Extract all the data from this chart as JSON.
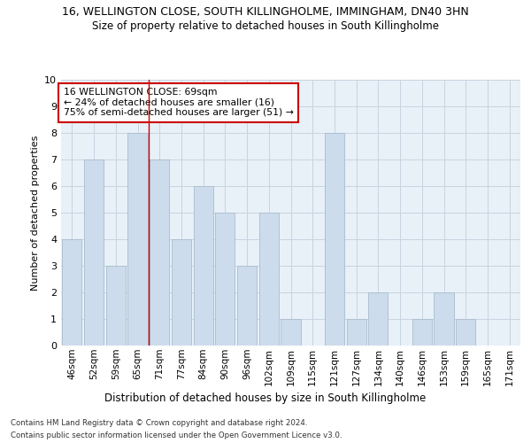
{
  "title": "16, WELLINGTON CLOSE, SOUTH KILLINGHOLME, IMMINGHAM, DN40 3HN",
  "subtitle": "Size of property relative to detached houses in South Killingholme",
  "xlabel": "Distribution of detached houses by size in South Killingholme",
  "ylabel": "Number of detached properties",
  "categories": [
    "46sqm",
    "52sqm",
    "59sqm",
    "65sqm",
    "71sqm",
    "77sqm",
    "84sqm",
    "90sqm",
    "96sqm",
    "102sqm",
    "109sqm",
    "115sqm",
    "121sqm",
    "127sqm",
    "134sqm",
    "140sqm",
    "146sqm",
    "153sqm",
    "159sqm",
    "165sqm",
    "171sqm"
  ],
  "values": [
    4,
    7,
    3,
    8,
    7,
    4,
    6,
    5,
    3,
    5,
    1,
    0,
    8,
    1,
    2,
    0,
    1,
    2,
    1,
    0,
    0
  ],
  "bar_color": "#ccdcec",
  "bar_edge_color": "#aabccc",
  "ylim": [
    0,
    10
  ],
  "yticks": [
    0,
    1,
    2,
    3,
    4,
    5,
    6,
    7,
    8,
    9,
    10
  ],
  "red_line_x": 3.5,
  "annotation_line1": "16 WELLINGTON CLOSE: 69sqm",
  "annotation_line2": "← 24% of detached houses are smaller (16)",
  "annotation_line3": "75% of semi-detached houses are larger (51) →",
  "annotation_box_color": "#ffffff",
  "annotation_box_edge": "#cc0000",
  "footer_line1": "Contains HM Land Registry data © Crown copyright and database right 2024.",
  "footer_line2": "Contains public sector information licensed under the Open Government Licence v3.0.",
  "bg_color": "#ffffff",
  "plot_bg_color": "#e8f0f8",
  "grid_color": "#c8d4e0"
}
